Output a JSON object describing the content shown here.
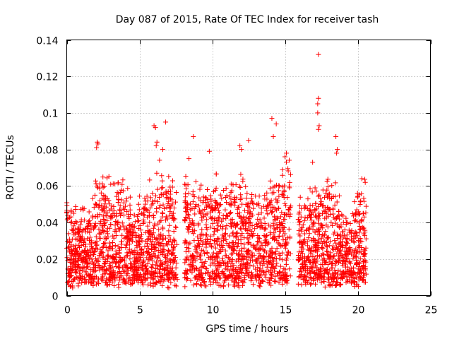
{
  "chart_data": {
    "type": "scatter",
    "title": "Day 087 of 2015, Rate Of TEC Index for receiver tash",
    "xlabel": "GPS time / hours",
    "ylabel": "ROTI / TECUs",
    "xlim": [
      0,
      25
    ],
    "ylim": [
      0,
      0.14
    ],
    "xticks": [
      0,
      5,
      10,
      15,
      20,
      25
    ],
    "yticks": [
      0,
      0.02,
      0.04,
      0.06,
      0.08,
      0.1,
      0.12,
      0.14
    ],
    "xtick_labels": [
      "0",
      "5",
      "10",
      "15",
      "20",
      "25"
    ],
    "ytick_labels": [
      "0",
      "0.02",
      "0.04",
      "0.06",
      "0.08",
      "0.1",
      "0.12",
      "0.14"
    ],
    "grid": true,
    "marker": "+",
    "color": "#ff0000",
    "data_gaps_hours": [
      [
        7.6,
        8.1
      ],
      [
        15.4,
        15.9
      ],
      [
        20.6,
        25
      ]
    ],
    "envelope_hours": [
      0,
      0.5,
      1,
      1.5,
      2,
      2.5,
      3,
      3.5,
      4,
      4.5,
      5,
      5.5,
      6,
      6.5,
      7,
      7.5,
      8.1,
      8.5,
      9,
      9.5,
      10,
      10.5,
      11,
      11.5,
      12,
      12.5,
      13,
      13.5,
      14,
      14.5,
      15,
      15.4,
      15.9,
      16.5,
      17,
      17.5,
      18,
      18.5,
      19,
      19.5,
      20,
      20.6
    ],
    "envelope_upper": [
      0.06,
      0.05,
      0.05,
      0.045,
      0.065,
      0.07,
      0.065,
      0.06,
      0.065,
      0.05,
      0.055,
      0.06,
      0.065,
      0.075,
      0.065,
      0.06,
      0.07,
      0.065,
      0.07,
      0.06,
      0.065,
      0.065,
      0.065,
      0.065,
      0.065,
      0.06,
      0.055,
      0.055,
      0.065,
      0.065,
      0.075,
      0.075,
      0.055,
      0.055,
      0.06,
      0.065,
      0.07,
      0.06,
      0.045,
      0.045,
      0.065,
      0.065
    ],
    "peaks": [
      {
        "x": 17.3,
        "y": 0.132
      },
      {
        "x": 17.3,
        "y": 0.108
      },
      {
        "x": 17.25,
        "y": 0.105
      },
      {
        "x": 17.25,
        "y": 0.1
      },
      {
        "x": 17.35,
        "y": 0.093
      },
      {
        "x": 17.3,
        "y": 0.091
      },
      {
        "x": 14.1,
        "y": 0.097
      },
      {
        "x": 14.4,
        "y": 0.094
      },
      {
        "x": 14.2,
        "y": 0.087
      },
      {
        "x": 6.8,
        "y": 0.095
      },
      {
        "x": 6.0,
        "y": 0.093
      },
      {
        "x": 6.1,
        "y": 0.092
      },
      {
        "x": 6.2,
        "y": 0.084
      },
      {
        "x": 6.15,
        "y": 0.082
      },
      {
        "x": 2.1,
        "y": 0.084
      },
      {
        "x": 2.15,
        "y": 0.083
      },
      {
        "x": 2.05,
        "y": 0.081
      },
      {
        "x": 8.7,
        "y": 0.087
      },
      {
        "x": 12.5,
        "y": 0.085
      },
      {
        "x": 11.9,
        "y": 0.082
      },
      {
        "x": 12.0,
        "y": 0.08
      },
      {
        "x": 18.5,
        "y": 0.087
      },
      {
        "x": 18.6,
        "y": 0.08
      },
      {
        "x": 18.55,
        "y": 0.078
      },
      {
        "x": 9.8,
        "y": 0.079
      },
      {
        "x": 6.6,
        "y": 0.08
      },
      {
        "x": 8.4,
        "y": 0.075
      },
      {
        "x": 15.1,
        "y": 0.078
      },
      {
        "x": 15.0,
        "y": 0.076
      },
      {
        "x": 16.9,
        "y": 0.073
      }
    ]
  }
}
